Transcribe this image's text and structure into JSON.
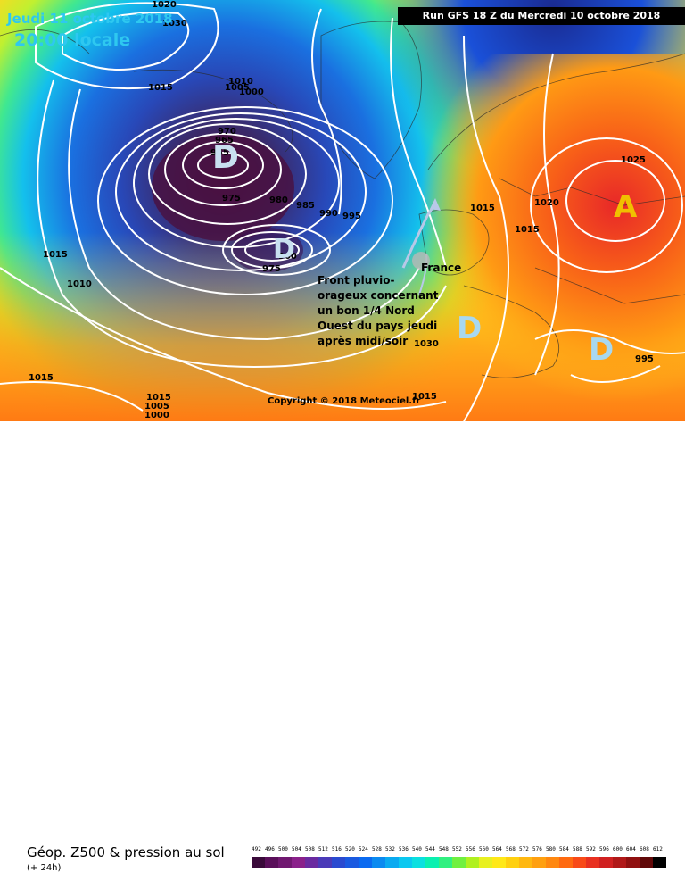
{
  "header": {
    "date": "Jeudi 11 octobre 2018",
    "time": "20:00 locale",
    "run": "Run GFS 18 Z du Mercredi 10 octobre 2018"
  },
  "map": {
    "region_label": "France",
    "annotation_lines": [
      "Front pluvio-",
      "orageux concernant",
      "un bon 1/4 Nord",
      "Ouest du pays jeudi",
      "après midi/soir"
    ],
    "copyright": "Copyright © 2018 Meteociel.fr",
    "pressure_centers": [
      {
        "symbol": "D",
        "type": "low",
        "color": "#c8e0f0"
      },
      {
        "symbol": "D",
        "type": "low",
        "color": "#c8e0f0"
      },
      {
        "symbol": "D",
        "type": "low",
        "color": "#c8e0f0"
      },
      {
        "symbol": "D",
        "type": "low",
        "color": "#c8e0f0"
      },
      {
        "symbol": "A",
        "type": "high",
        "color": "#f0c000"
      }
    ],
    "isobar_labels": [
      "1020",
      "1030",
      "1015",
      "1010",
      "1005",
      "1000",
      "970",
      "965",
      "955",
      "975",
      "980",
      "985",
      "990",
      "995",
      "975",
      "960",
      "1010",
      "1015",
      "1015",
      "1015",
      "1015",
      "1020",
      "1025",
      "1030",
      "1015",
      "1015",
      "1005",
      "1000",
      "995",
      "1015",
      "1010",
      "1015"
    ]
  },
  "legend": {
    "title": "Géop. Z500 & pression au sol",
    "subtitle": "(+ 24h)",
    "scale_labels": [
      "492",
      "496",
      "500",
      "504",
      "508",
      "512",
      "516",
      "520",
      "524",
      "528",
      "532",
      "536",
      "540",
      "544",
      "548",
      "552",
      "556",
      "560",
      "564",
      "568",
      "572",
      "576",
      "580",
      "584",
      "588",
      "592",
      "596",
      "600",
      "604",
      "608",
      "612"
    ],
    "scale_colors": [
      "#3a0a3a",
      "#5a0f5a",
      "#701870",
      "#8a208a",
      "#6a2aa0",
      "#4a3ab8",
      "#2a4ad0",
      "#1a5ae0",
      "#0a6af0",
      "#0a8af0",
      "#0aaaf0",
      "#0ac8f0",
      "#0ae0e0",
      "#0af0b0",
      "#30f080",
      "#70f040",
      "#b0f020",
      "#e8f020",
      "#ffe818",
      "#ffd010",
      "#ffb810",
      "#ffa010",
      "#ff8810",
      "#ff6a10",
      "#f84a18",
      "#e83020",
      "#d02020",
      "#b01818",
      "#901010",
      "#600808",
      "#000000"
    ]
  }
}
